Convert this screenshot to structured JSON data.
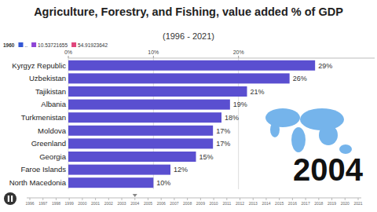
{
  "chart_data": {
    "type": "bar",
    "orientation": "horizontal",
    "title": "Agriculture, Forestry, and Fishing, value added % of GDP",
    "subtitle": "(1996 - 2021)",
    "categories": [
      "Kyrgyz Republic",
      "Uzbekistan",
      "Tajikistan",
      "Albania",
      "Turkmenistan",
      "Moldova",
      "Greenland",
      "Georgia",
      "Faroe Islands",
      "North Macedonia"
    ],
    "values": [
      29,
      26,
      21,
      19,
      18,
      17,
      17,
      15,
      12,
      10
    ],
    "value_labels": [
      "29%",
      "26%",
      "21%",
      "19%",
      "18%",
      "17%",
      "17%",
      "15%",
      "12%",
      "10%"
    ],
    "data_labels": true,
    "color": "#5a4fd0",
    "xlim": [
      0,
      36
    ],
    "xticks": [
      {
        "value": 0,
        "label": "0%"
      },
      {
        "value": 10,
        "label": "10%"
      },
      {
        "value": 20,
        "label": "20%"
      }
    ],
    "grid": true,
    "legend_texts": [
      "1960",
      "..",
      "10.53721655",
      "54.91923642"
    ],
    "timeline": {
      "years": [
        1996,
        1997,
        1998,
        1999,
        2000,
        2001,
        2002,
        2003,
        2004,
        2005,
        2006,
        2007,
        2008,
        2009,
        2010,
        2011,
        2012,
        2013,
        2014,
        2015,
        2016,
        2017,
        2018,
        2019,
        2020,
        2021
      ],
      "current": 2004
    }
  }
}
